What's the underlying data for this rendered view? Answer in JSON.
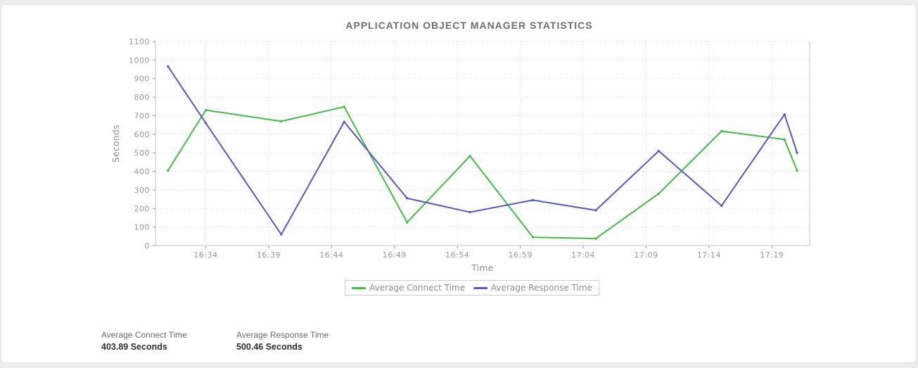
{
  "chart_data": {
    "type": "line",
    "title": "APPLICATION OBJECT MANAGER STATISTICS",
    "xlabel": "Time",
    "ylabel": "Seconds",
    "ylim": [
      0,
      1100
    ],
    "y_tick_step": 100,
    "y_tick_labels": [
      "0",
      "100",
      "200",
      "300",
      "400",
      "500",
      "600",
      "700",
      "800",
      "900",
      "1000",
      "1100"
    ],
    "grid": true,
    "legend_position": "bottom",
    "x_domain_minutes": [
      0,
      52
    ],
    "x_tick_minutes": [
      4,
      9,
      14,
      19,
      24,
      29,
      34,
      39,
      44,
      49
    ],
    "x_tick_labels": [
      "16:34",
      "16:39",
      "16:44",
      "16:49",
      "16:54",
      "16:59",
      "17:04",
      "17:09",
      "17:14",
      "17:19"
    ],
    "x_minutes": [
      1,
      4,
      10,
      15,
      20,
      25,
      30,
      35,
      40,
      45,
      50,
      51
    ],
    "x_point_times": [
      "16:31",
      "16:34",
      "16:40",
      "16:45",
      "16:50",
      "16:55",
      "17:00",
      "17:05",
      "17:10",
      "17:15",
      "17:20",
      "17:21"
    ],
    "series": [
      {
        "name": "Average Connect Time",
        "color": "#44bb44",
        "values": [
          405,
          730,
          670,
          748,
          125,
          483,
          45,
          38,
          280,
          617,
          572,
          403.89
        ]
      },
      {
        "name": "Average Response Time",
        "color": "#5555cc",
        "values": [
          965,
          660,
          60,
          667,
          255,
          180,
          245,
          190,
          510,
          215,
          707,
          500.46
        ]
      }
    ]
  },
  "summary": [
    {
      "label": "Average Connect Time",
      "value": "403.89 Seconds"
    },
    {
      "label": "Average Response Time",
      "value": "500.46 Seconds"
    }
  ],
  "colors": {
    "connect_series": "#44bb44",
    "response_series": "#5555cc",
    "grid": "#dadada",
    "axis_frame": "#c5c5c5"
  }
}
